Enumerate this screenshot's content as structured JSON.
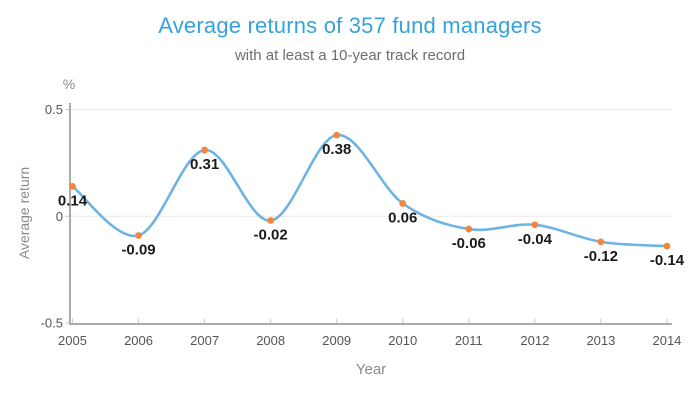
{
  "title": "Average returns of 357 fund managers",
  "subtitle": "with at least a 10-year track record",
  "chart_data": {
    "type": "line",
    "smoothed": true,
    "title": "Average returns of 357 fund managers",
    "subtitle": "with at least a 10-year track record",
    "categories": [
      "2005",
      "2006",
      "2007",
      "2008",
      "2009",
      "2010",
      "2011",
      "2012",
      "2013",
      "2014"
    ],
    "values": [
      0.14,
      -0.09,
      0.31,
      -0.02,
      0.38,
      0.06,
      -0.06,
      -0.04,
      -0.12,
      -0.14
    ],
    "point_labels": [
      "0.14",
      "-0.09",
      "0.31",
      "-0.02",
      "0.38",
      "0.06",
      "-0.06",
      "-0.04",
      "-0.12",
      "-0.14"
    ],
    "xlabel": "Year",
    "ylabel": "Average return",
    "y_unit": "%",
    "ylim": [
      -0.5,
      0.5
    ],
    "yticks": [
      {
        "value": 0.5,
        "label": "0.5"
      },
      {
        "value": 0,
        "label": "0"
      },
      {
        "value": -0.5,
        "label": "-0.5"
      }
    ],
    "grid": true,
    "legend": false,
    "colors": {
      "line": "#6EB4E2",
      "marker": "#F5853B",
      "title": "#36A2DC",
      "subtitle": "#6D6D6D",
      "axis": "#ABABAB",
      "grid": "#E9E9E9",
      "tick": "#C9C9C9",
      "tick_text": "#555555",
      "value_label": "#1A1A1A",
      "axis_title": "#8A8A8A"
    }
  }
}
